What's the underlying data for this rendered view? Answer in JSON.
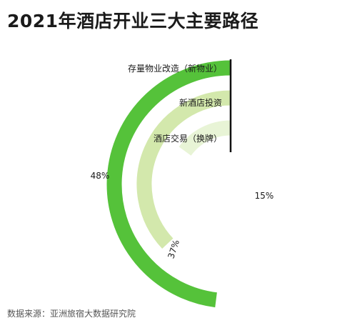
{
  "title": "2021年酒店开业三大主要路径",
  "source": "数据来源：亚洲旅宿大数据研究院",
  "colors": {
    "ring_outer": "#55c23a",
    "ring_middle": "#d3e8ac",
    "ring_inner": "#e8f4d6",
    "divider": "#111111"
  },
  "chart_data": {
    "type": "radial-bar",
    "title": "2021年酒店开业三大主要路径",
    "unit": "%",
    "series": [
      {
        "name": "存量物业改造（新物业）",
        "value": 48,
        "label": "48%"
      },
      {
        "name": "新酒店投资",
        "value": 37,
        "label": "37%"
      },
      {
        "name": "酒店交易（换牌）",
        "value": 15,
        "label": "15%"
      }
    ]
  }
}
